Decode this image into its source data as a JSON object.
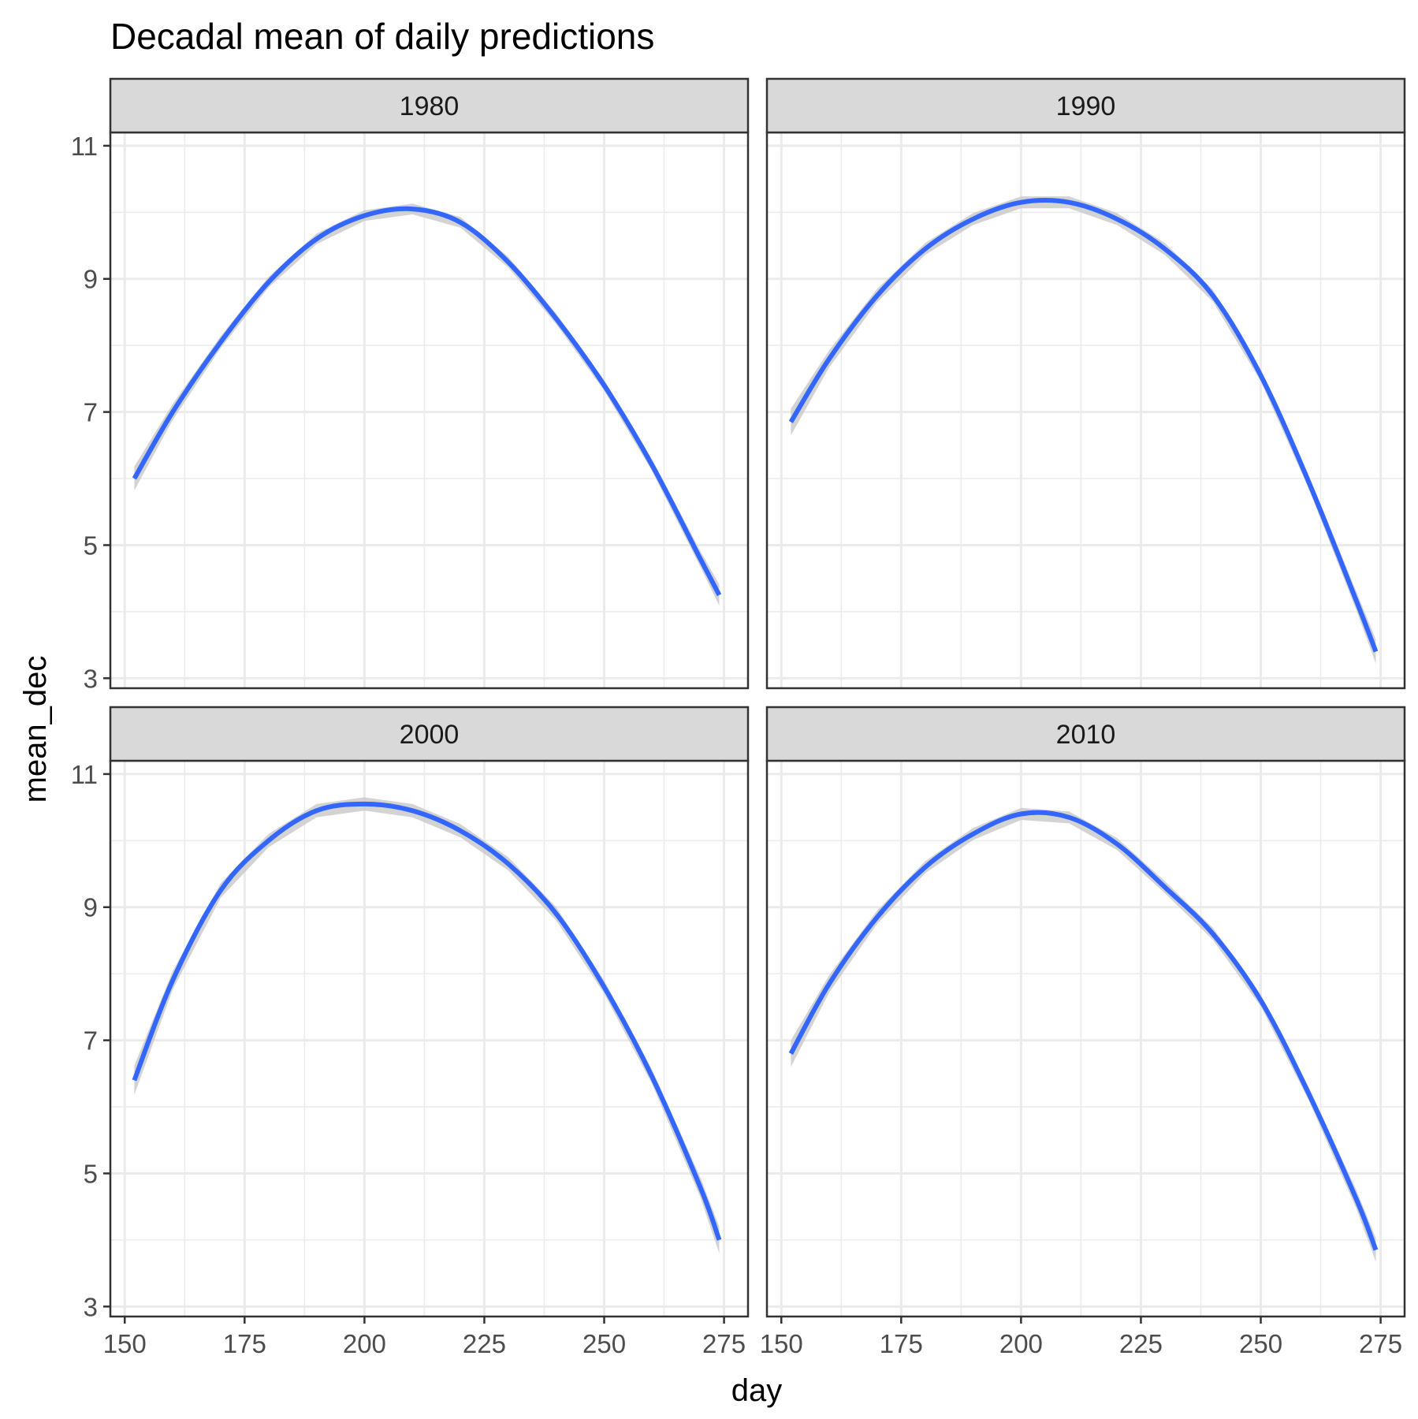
{
  "chart_data": {
    "type": "line",
    "title": "Decadal mean of daily predictions",
    "xlabel": "day",
    "ylabel": "mean_dec",
    "xlim": [
      147,
      280
    ],
    "ylim": [
      2.85,
      11.2
    ],
    "x_ticks": [
      150,
      175,
      200,
      225,
      250,
      275
    ],
    "y_ticks": [
      3,
      5,
      7,
      9,
      11
    ],
    "grid": true,
    "facet_layout": "2x2",
    "colors": {
      "line": "#3366ff",
      "ribbon": "#c8c8c8",
      "strip": "#d9d9d9",
      "grid": "#ebebeb"
    },
    "panels": [
      {
        "label": "1980",
        "x": [
          152,
          160,
          170,
          180,
          190,
          200,
          210,
          220,
          230,
          240,
          250,
          260,
          270,
          274
        ],
        "y": [
          6.0,
          7.0,
          8.05,
          8.95,
          9.6,
          9.95,
          10.05,
          9.85,
          9.25,
          8.4,
          7.4,
          6.2,
          4.8,
          4.25
        ],
        "se": [
          0.18,
          0.12,
          0.09,
          0.08,
          0.08,
          0.08,
          0.08,
          0.08,
          0.08,
          0.08,
          0.08,
          0.09,
          0.12,
          0.16
        ]
      },
      {
        "label": "1990",
        "x": [
          152,
          160,
          170,
          180,
          190,
          200,
          210,
          220,
          230,
          240,
          250,
          260,
          270,
          274
        ],
        "y": [
          6.85,
          7.8,
          8.75,
          9.45,
          9.9,
          10.15,
          10.15,
          9.9,
          9.45,
          8.75,
          7.55,
          5.95,
          4.15,
          3.4
        ],
        "se": [
          0.2,
          0.13,
          0.1,
          0.09,
          0.09,
          0.09,
          0.09,
          0.09,
          0.09,
          0.09,
          0.09,
          0.1,
          0.14,
          0.18
        ]
      },
      {
        "label": "2000",
        "x": [
          152,
          160,
          170,
          180,
          190,
          200,
          210,
          220,
          230,
          240,
          250,
          260,
          270,
          274
        ],
        "y": [
          6.4,
          7.9,
          9.25,
          10.0,
          10.45,
          10.55,
          10.45,
          10.15,
          9.65,
          8.9,
          7.8,
          6.45,
          4.8,
          4.0
        ],
        "se": [
          0.22,
          0.14,
          0.11,
          0.1,
          0.1,
          0.1,
          0.1,
          0.1,
          0.1,
          0.1,
          0.1,
          0.11,
          0.15,
          0.2
        ]
      },
      {
        "label": "2010",
        "x": [
          152,
          160,
          170,
          180,
          190,
          200,
          210,
          220,
          230,
          240,
          250,
          260,
          270,
          274
        ],
        "y": [
          6.8,
          7.85,
          8.85,
          9.6,
          10.1,
          10.4,
          10.35,
          9.95,
          9.3,
          8.6,
          7.6,
          6.2,
          4.6,
          3.85
        ],
        "se": [
          0.2,
          0.13,
          0.1,
          0.09,
          0.09,
          0.09,
          0.09,
          0.09,
          0.09,
          0.09,
          0.09,
          0.1,
          0.14,
          0.18
        ]
      }
    ]
  }
}
